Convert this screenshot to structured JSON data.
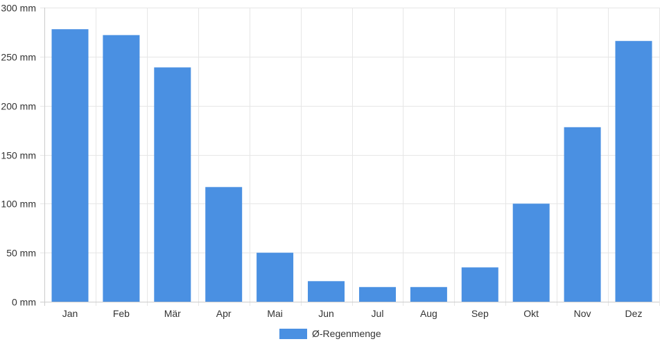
{
  "chart_data": {
    "type": "bar",
    "categories": [
      "Jan",
      "Feb",
      "Mär",
      "Apr",
      "Mai",
      "Jun",
      "Jul",
      "Aug",
      "Sep",
      "Okt",
      "Nov",
      "Dez"
    ],
    "series": [
      {
        "name": "Ø-Regenmenge",
        "values": [
          278,
          272,
          239,
          117,
          50,
          21,
          15,
          15,
          35,
          100,
          178,
          266
        ],
        "color": "#4a90e2"
      }
    ],
    "y_ticks": [
      "0 mm",
      "50 mm",
      "100 mm",
      "150 mm",
      "200 mm",
      "250 mm",
      "300 mm"
    ],
    "ylim": [
      0,
      300
    ],
    "y_unit": "mm",
    "grid": true,
    "legend_position": "bottom-center"
  }
}
